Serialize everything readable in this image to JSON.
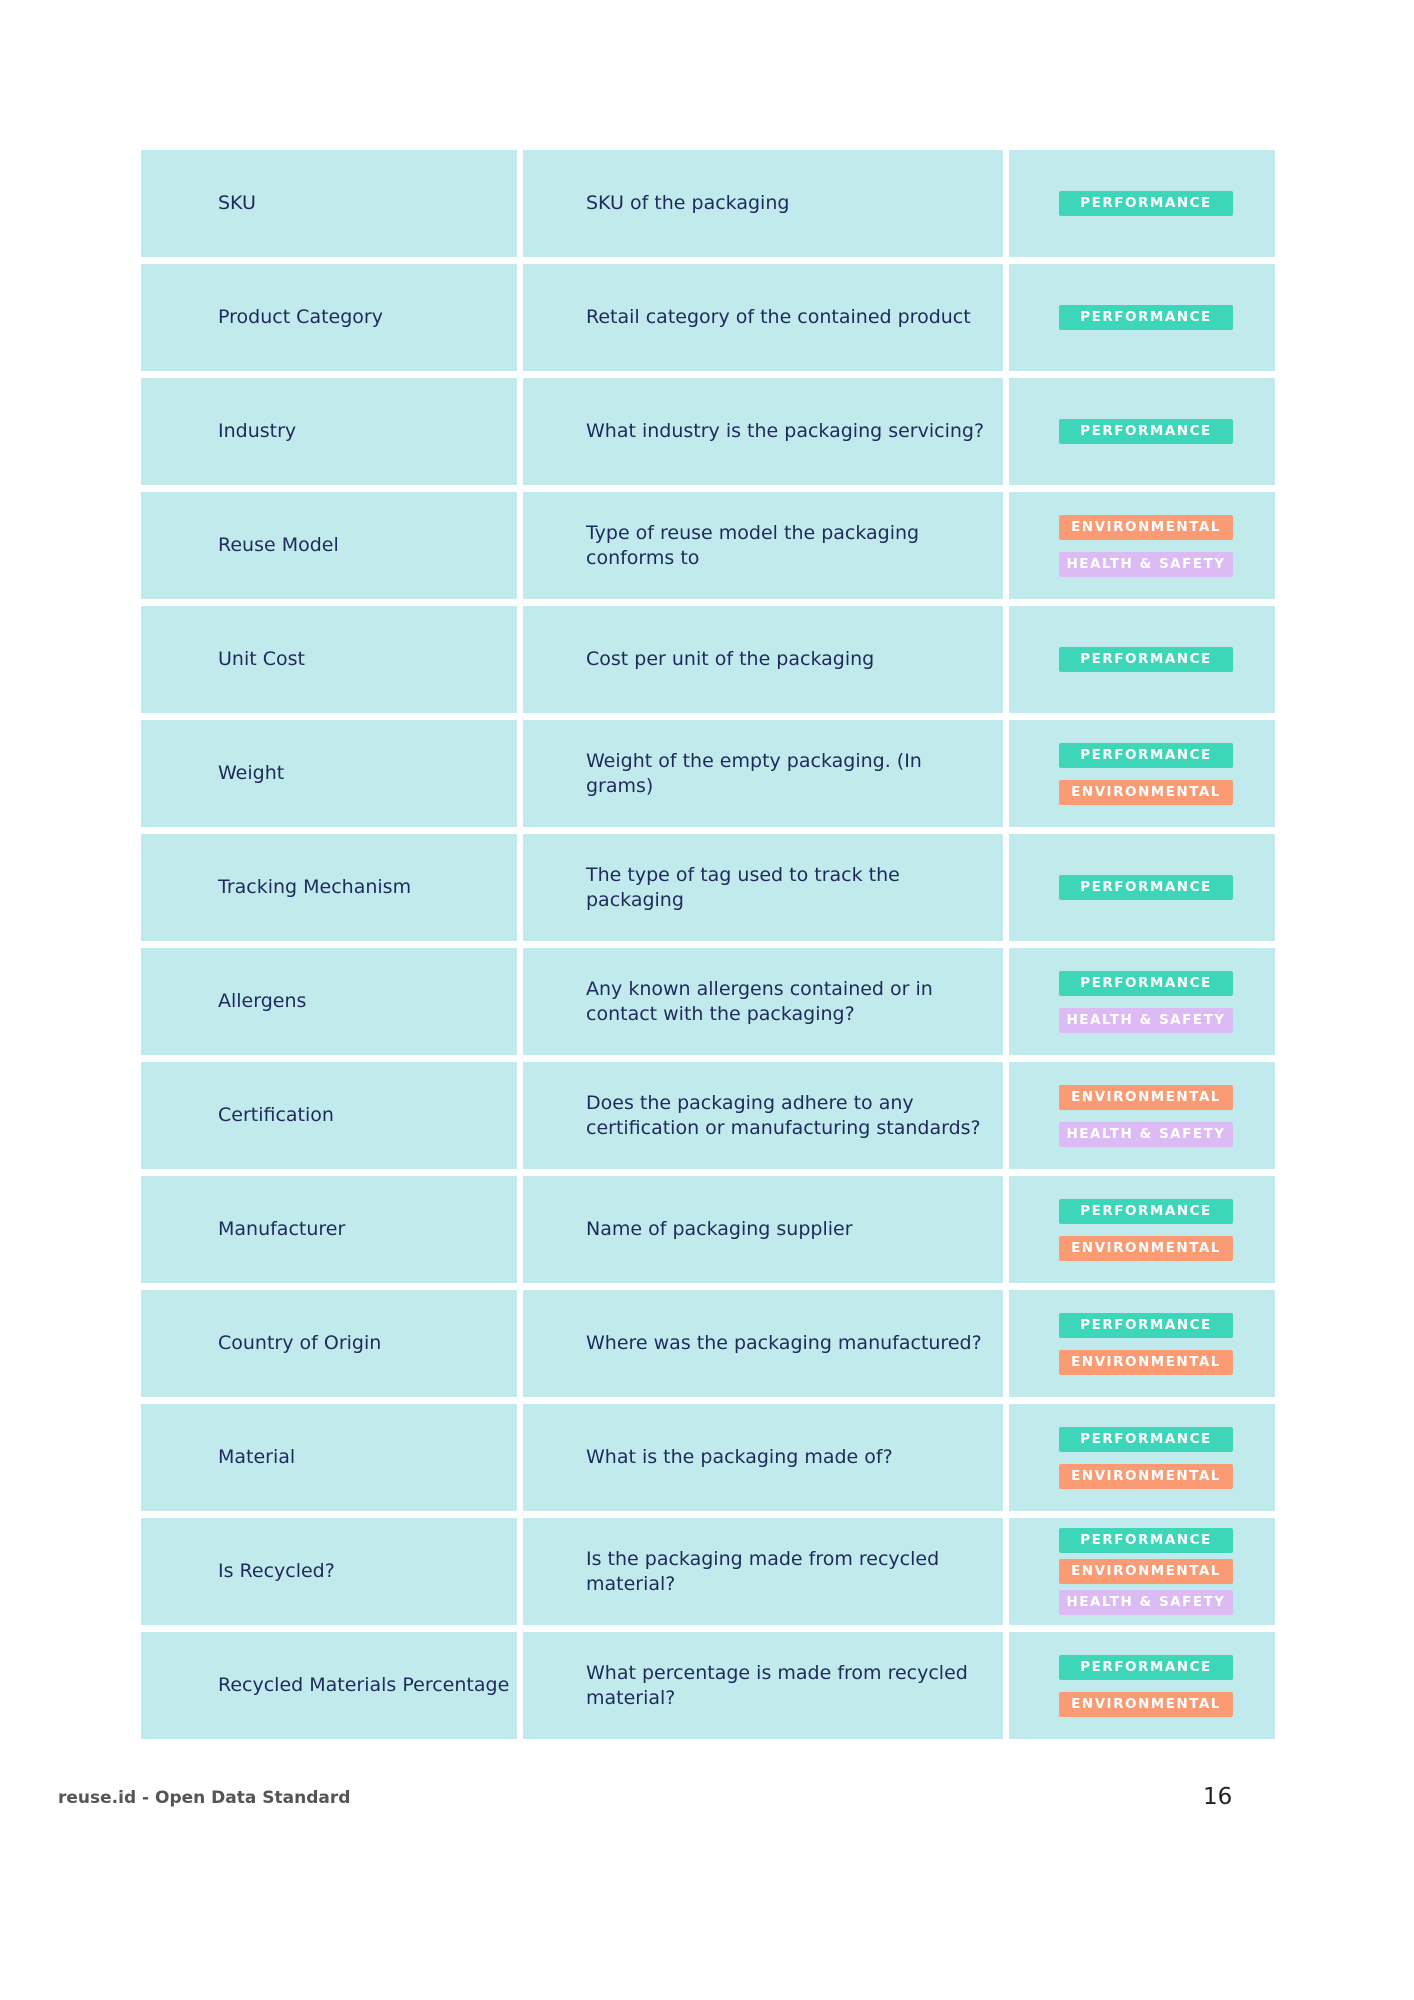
{
  "tag_labels": {
    "performance": "PERFORMANCE",
    "environmental": "ENVIRONMENTAL",
    "health": "HEALTH & SAFETY"
  },
  "colors": {
    "cell_background": "#c1eaed",
    "performance": "#3dd6b8",
    "environmental": "#fa9b74",
    "health": "#dcbaf3",
    "text": "#1f2a5a"
  },
  "rows": [
    {
      "name": "SKU",
      "description": "SKU of the packaging",
      "tags": [
        "performance"
      ]
    },
    {
      "name": "Product Category",
      "description": "Retail category of the contained product",
      "tags": [
        "performance"
      ]
    },
    {
      "name": "Industry",
      "description": "What industry is the packaging servicing?",
      "tags": [
        "performance"
      ]
    },
    {
      "name": "Reuse Model",
      "description": "Type of reuse model the packaging conforms to",
      "tags": [
        "environmental",
        "health"
      ]
    },
    {
      "name": "Unit Cost",
      "description": "Cost per unit of the packaging",
      "tags": [
        "performance"
      ]
    },
    {
      "name": "Weight",
      "description": "Weight of the empty packaging. (In grams)",
      "tags": [
        "performance",
        "environmental"
      ]
    },
    {
      "name": "Tracking Mechanism",
      "description": "The type of tag used to track the packaging",
      "tags": [
        "performance"
      ]
    },
    {
      "name": "Allergens",
      "description": "Any known allergens contained or in contact with the packaging?",
      "tags": [
        "performance",
        "health"
      ]
    },
    {
      "name": "Certification",
      "description": "Does the packaging adhere to any certification or manufacturing standards?",
      "tags": [
        "environmental",
        "health"
      ]
    },
    {
      "name": "Manufacturer",
      "description": "Name of packaging supplier",
      "tags": [
        "performance",
        "environmental"
      ]
    },
    {
      "name": "Country of Origin",
      "description": "Where was the packaging manufactured?",
      "tags": [
        "performance",
        "environmental"
      ]
    },
    {
      "name": "Material",
      "description": "What is the packaging made of?",
      "tags": [
        "performance",
        "environmental"
      ]
    },
    {
      "name": "Is Recycled?",
      "description": "Is the packaging made from recycled material?",
      "tags": [
        "performance",
        "environmental",
        "health"
      ]
    },
    {
      "name": "Recycled Materials Percentage",
      "description": "What percentage is made from recycled material?",
      "tags": [
        "performance",
        "environmental"
      ]
    }
  ],
  "footer": {
    "left": "reuse.id - Open Data Standard",
    "page_number": "16"
  }
}
